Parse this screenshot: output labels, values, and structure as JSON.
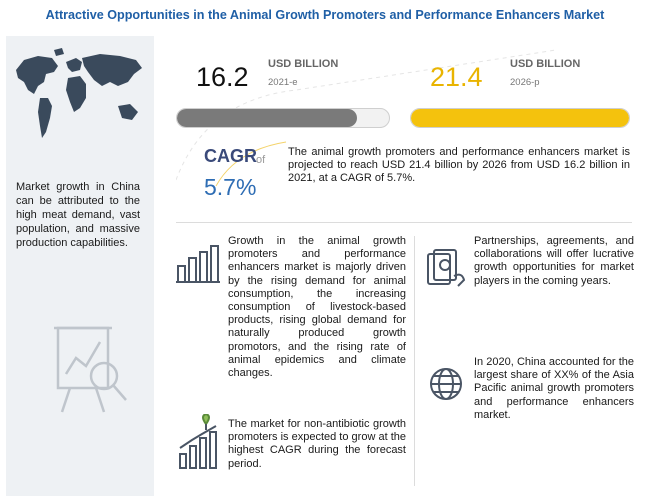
{
  "title": "Attractive Opportunities in the Animal Growth Promoters and Performance Enhancers Market",
  "left_note": "Market growth in China can be attributed to the high meat demand, vast population, and massive production capabilities.",
  "stats": [
    {
      "value": "16.2",
      "unit": "USD BILLION",
      "year": "2021-e",
      "progress": 0.85,
      "color": "#7a7a7a"
    },
    {
      "value": "21.4",
      "unit": "USD BILLION",
      "year": "2026-p",
      "progress": 1.0,
      "color": "#f4c20d"
    }
  ],
  "cagr": {
    "label": "CAGR",
    "of": "of",
    "value": "5.7%"
  },
  "summary": "The animal growth promoters and performance enhancers market is projected to reach USD 21.4 billion by 2026 from USD 16.2 billion in 2021, at a CAGR of 5.7%.",
  "insights": {
    "growth": "Growth in the animal growth promoters and performance enhancers market is majorly driven by the rising demand for animal consumption, the increasing consumption of livestock-based products, rising global demand for naturally produced growth promotors, and the rising rate of animal epidemics and climate changes.",
    "partnerships": "Partnerships, agreements, and collaborations will offer lucrative growth opportunities for market players in the coming years.",
    "non_antibiotic": "The market for non-antibiotic growth promoters is expected to grow at the highest CAGR during the forecast period.",
    "china": "In 2020, China accounted for the largest share of XX% of the Asia Pacific animal growth promoters and performance enhancers market."
  },
  "icons": [
    "world-map-icon",
    "analytics-chart-icon",
    "bar-chart-icon",
    "money-icon",
    "globe-icon",
    "growth-chart-icon"
  ]
}
